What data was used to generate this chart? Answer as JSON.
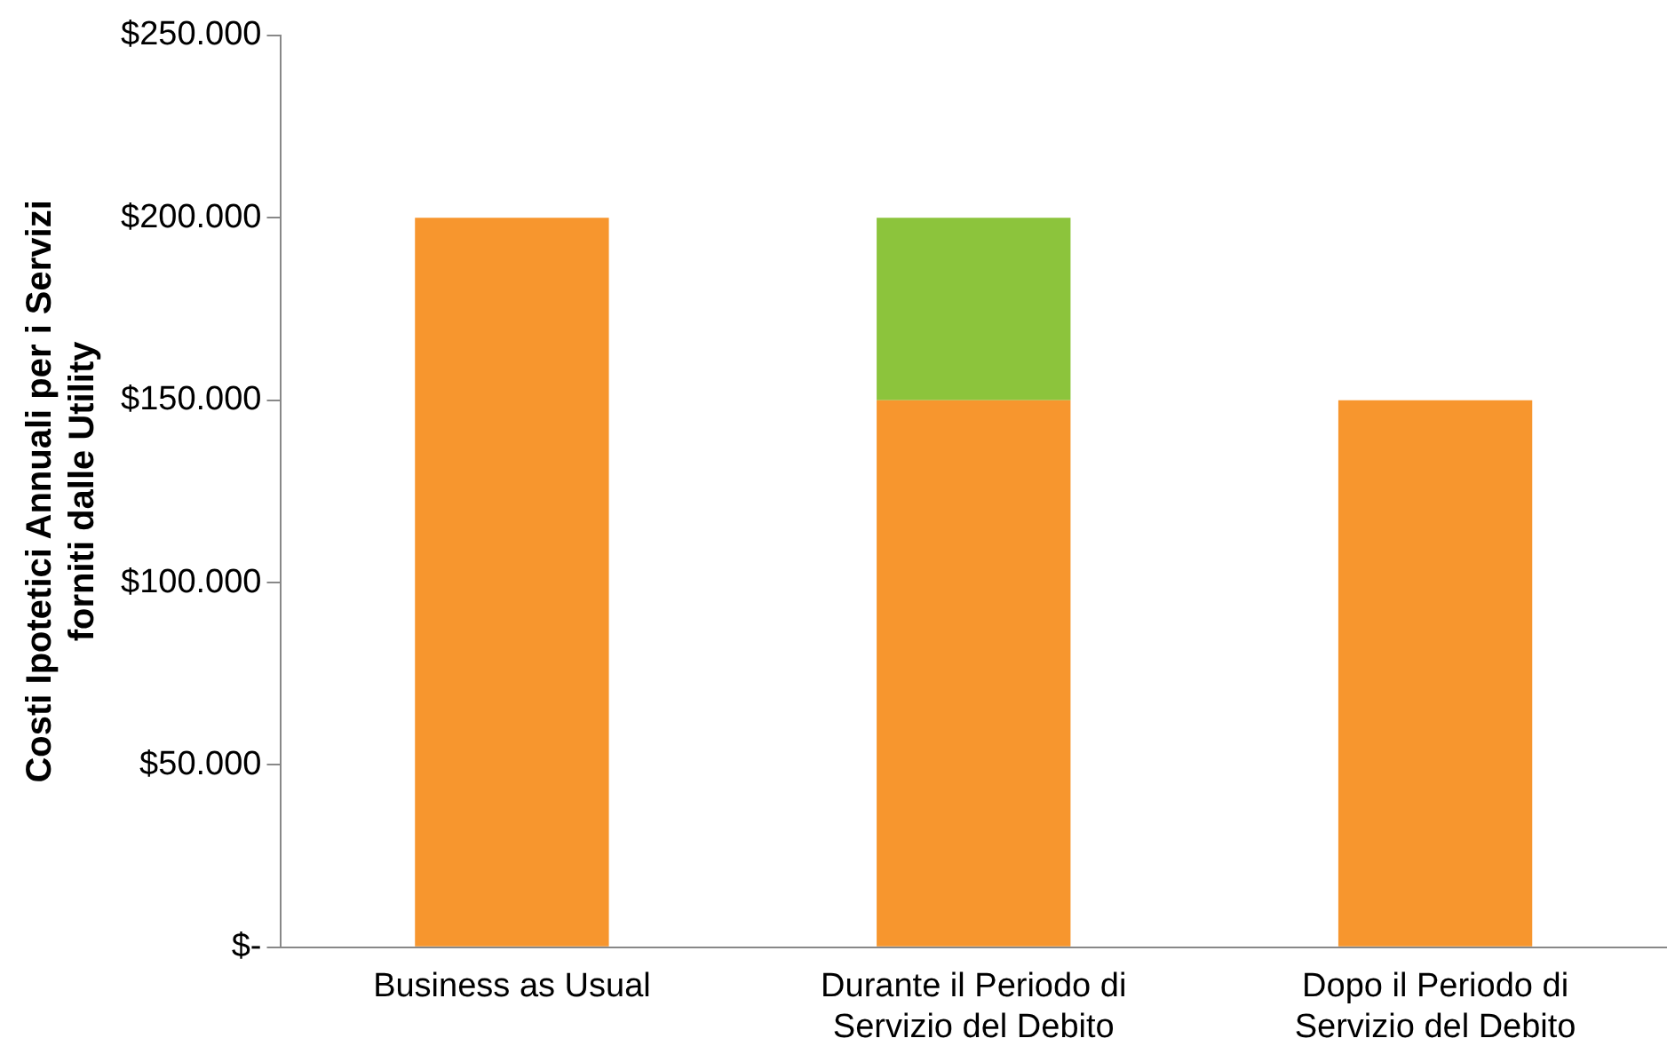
{
  "chart_data": {
    "type": "bar",
    "stacked": true,
    "ylabel": "Costi Ipotetici Annuali per i Servizi forniti dalle Utility",
    "categories": [
      "Business as Usual",
      "Durante il Periodo di Servizio del Debito",
      "Dopo il Periodo di Servizio del Debito"
    ],
    "series": [
      {
        "color": "#f7962e",
        "values": [
          200000,
          150000,
          150000
        ]
      },
      {
        "color": "#8cc43c",
        "values": [
          0,
          50000,
          0
        ]
      }
    ],
    "ylim": [
      0,
      250000
    ],
    "yticks": [
      {
        "value": 0,
        "label": "$-"
      },
      {
        "value": 50000,
        "label": "$50.000"
      },
      {
        "value": 100000,
        "label": "$100.000"
      },
      {
        "value": 150000,
        "label": "$150.000"
      },
      {
        "value": 200000,
        "label": "$200.000"
      },
      {
        "value": 250000,
        "label": "$250.000"
      }
    ],
    "grid": false,
    "legend": false
  }
}
